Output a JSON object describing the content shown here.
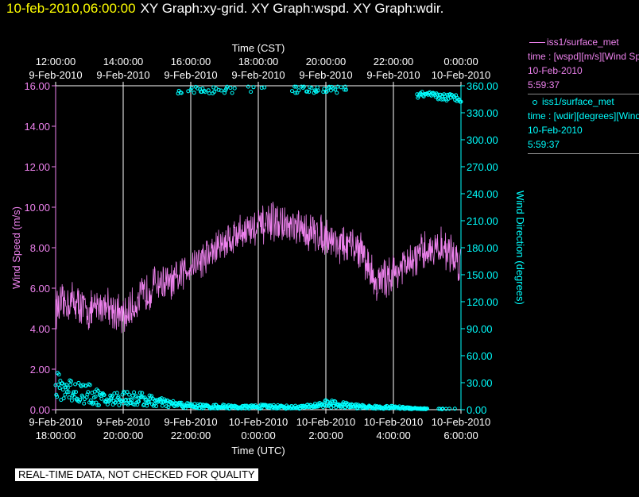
{
  "header": {
    "timestamp": "10-feb-2010,06:00:00",
    "titles": "XY Graph:xy-grid.  XY Graph:wspd.  XY Graph:wdir."
  },
  "legend": {
    "entry1": {
      "name": "iss1/surface_met",
      "line2": "time : [wspd][m/s][Wind Speed]",
      "line3": "10-Feb-2010",
      "line4": "5:59:37",
      "color": "#ee82ee"
    },
    "entry2": {
      "name": "iss1/surface_met",
      "line2": "time : [wdir][degrees][Wind Direction]",
      "line3": "10-Feb-2010",
      "line4": "5:59:37",
      "color": "#00ffff"
    }
  },
  "footer": {
    "text": "REAL-TIME DATA, NOT CHECKED FOR QUALITY"
  },
  "chart_data": {
    "type": "line",
    "top_axis": {
      "title": "Time (CST)",
      "ticks": [
        {
          "time": "12:00:00",
          "date": "9-Feb-2010"
        },
        {
          "time": "14:00:00",
          "date": "9-Feb-2010"
        },
        {
          "time": "16:00:00",
          "date": "9-Feb-2010"
        },
        {
          "time": "18:00:00",
          "date": "9-Feb-2010"
        },
        {
          "time": "20:00:00",
          "date": "9-Feb-2010"
        },
        {
          "time": "22:00:00",
          "date": "9-Feb-2010"
        },
        {
          "time": "0:00:00",
          "date": "10-Feb-2010"
        }
      ]
    },
    "bottom_axis": {
      "title": "Time (UTC)",
      "ticks": [
        {
          "date": "9-Feb-2010",
          "time": "18:00:00"
        },
        {
          "date": "9-Feb-2010",
          "time": "20:00:00"
        },
        {
          "date": "9-Feb-2010",
          "time": "22:00:00"
        },
        {
          "date": "10-Feb-2010",
          "time": "0:00:00"
        },
        {
          "date": "10-Feb-2010",
          "time": "2:00:00"
        },
        {
          "date": "10-Feb-2010",
          "time": "4:00:00"
        },
        {
          "date": "10-Feb-2010",
          "time": "6:00:00"
        }
      ],
      "range_utc_hours": [
        18,
        30
      ]
    },
    "left_axis": {
      "title": "Wind Speed (m/s)",
      "ylim": [
        0,
        16
      ],
      "ticks": [
        "0.00",
        "2.00",
        "4.00",
        "6.00",
        "8.00",
        "10.00",
        "12.00",
        "14.00",
        "16.00"
      ]
    },
    "right_axis": {
      "title": "Wind Direction (degrees)",
      "ylim": [
        0,
        360
      ],
      "ticks": [
        "0.00",
        "30.00",
        "60.00",
        "90.00",
        "120.00",
        "150.00",
        "180.00",
        "210.00",
        "240.00",
        "270.00",
        "300.00",
        "330.00",
        "360.00"
      ]
    },
    "grid": "vertical lines at bottom-axis ticks",
    "series": [
      {
        "name": "iss1/surface_met wspd",
        "axis": "left",
        "style": "line",
        "x_utc_hours": [
          18.0,
          18.5,
          19.0,
          19.5,
          20.0,
          20.5,
          21.0,
          21.5,
          22.0,
          22.5,
          23.0,
          23.5,
          24.0,
          24.5,
          25.0,
          25.5,
          26.0,
          26.5,
          27.0,
          27.5,
          28.0,
          28.5,
          29.0,
          29.5,
          30.0
        ],
        "values": [
          5.0,
          5.4,
          4.8,
          5.3,
          4.5,
          5.5,
          6.3,
          6.2,
          7.2,
          7.6,
          8.3,
          8.8,
          9.0,
          9.3,
          8.9,
          8.8,
          8.6,
          8.1,
          8.0,
          6.2,
          6.8,
          7.2,
          7.9,
          8.0,
          7.2
        ]
      },
      {
        "name": "iss1/surface_met wdir",
        "axis": "right",
        "style": "scatter",
        "x_utc_hours": [
          18.0,
          18.5,
          19.0,
          19.5,
          20.0,
          20.5,
          21.0,
          21.5,
          22.0,
          22.5,
          23.0,
          23.5,
          24.0,
          24.5,
          25.0,
          25.5,
          26.0,
          26.5,
          27.0,
          27.5,
          28.0,
          28.5,
          29.0,
          29.5,
          30.0
        ],
        "values": [
          30,
          26,
          20,
          12,
          16,
          14,
          10,
          7,
          5,
          4,
          4,
          3,
          4,
          4,
          3,
          4,
          8,
          6,
          4,
          3,
          3,
          2,
          1,
          1,
          1
        ],
        "high_cluster": {
          "x_utc_hours": [
            [
              21.6,
              23.3
            ],
            [
              23.7,
              24.5
            ],
            [
              25.0,
              26.6
            ],
            [
              28.7,
              30.0
            ]
          ],
          "values": [
            355,
            357,
            356,
            350
          ]
        }
      }
    ]
  }
}
